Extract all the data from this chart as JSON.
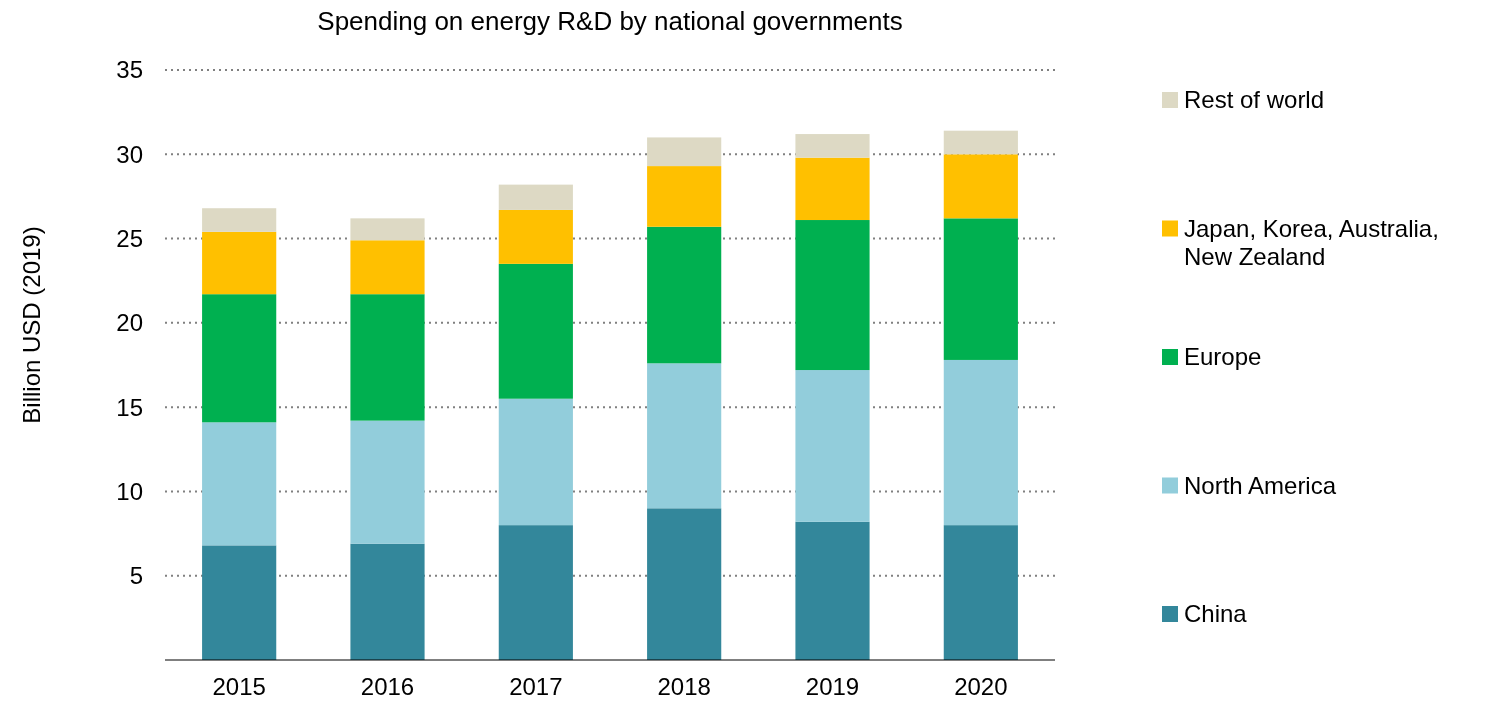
{
  "chart_data": {
    "type": "bar",
    "title": "Spending on energy R&D by national governments",
    "ylabel": "Billion USD (2019)",
    "categories": [
      "2015",
      "2016",
      "2017",
      "2018",
      "2019",
      "2020"
    ],
    "stacked": true,
    "series": [
      {
        "name": "China",
        "color": "#33879b",
        "values": [
          6.8,
          6.9,
          8.0,
          9.0,
          8.2,
          8.0
        ]
      },
      {
        "name": "North America",
        "color": "#92cddb",
        "values": [
          7.3,
          7.3,
          7.5,
          8.6,
          9.0,
          9.8
        ]
      },
      {
        "name": "Europe",
        "color": "#00b050",
        "values": [
          7.6,
          7.5,
          8.0,
          8.1,
          8.9,
          8.4
        ]
      },
      {
        "name": "Japan, Korea, Australia, New Zealand",
        "color": "#ffc000",
        "values": [
          3.7,
          3.2,
          3.2,
          3.6,
          3.7,
          3.8
        ]
      },
      {
        "name": "Rest of world",
        "color": "#ddd9c4",
        "values": [
          1.4,
          1.3,
          1.5,
          1.7,
          1.4,
          1.4
        ]
      }
    ],
    "ylim": [
      0,
      35
    ],
    "yticks": [
      5,
      10,
      15,
      20,
      25,
      30,
      35
    ],
    "grid": "y",
    "legend": "right"
  }
}
